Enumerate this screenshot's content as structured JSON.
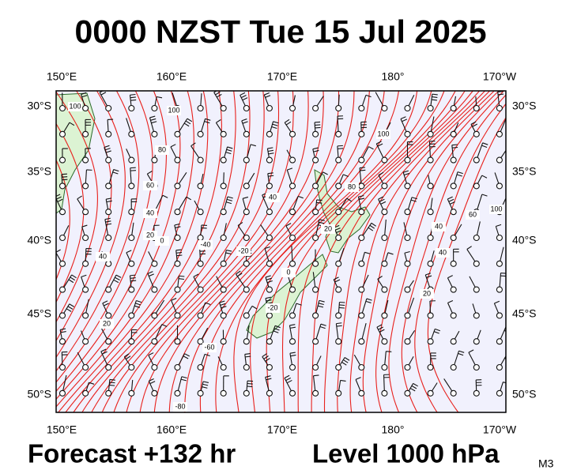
{
  "title": "0000 NZST Tue 15 Jul 2025",
  "axes": {
    "lon_labels": [
      "150°E",
      "160°E",
      "170°E",
      "180°",
      "170°W"
    ],
    "lat_labels": [
      "30°S",
      "35°S",
      "40°S",
      "45°S",
      "50°S"
    ]
  },
  "contour_labels": [
    "100",
    "100",
    "80",
    "60",
    "40",
    "20",
    "0",
    "40",
    "20",
    "-40",
    "-20",
    "-60",
    "-80",
    "40",
    "20",
    "0",
    "-20",
    "100",
    "80",
    "40",
    "60",
    "100",
    "40",
    "20"
  ],
  "footer": {
    "forecast": "Forecast +132 hr",
    "level": "Level 1000 hPa",
    "model": "M3"
  }
}
